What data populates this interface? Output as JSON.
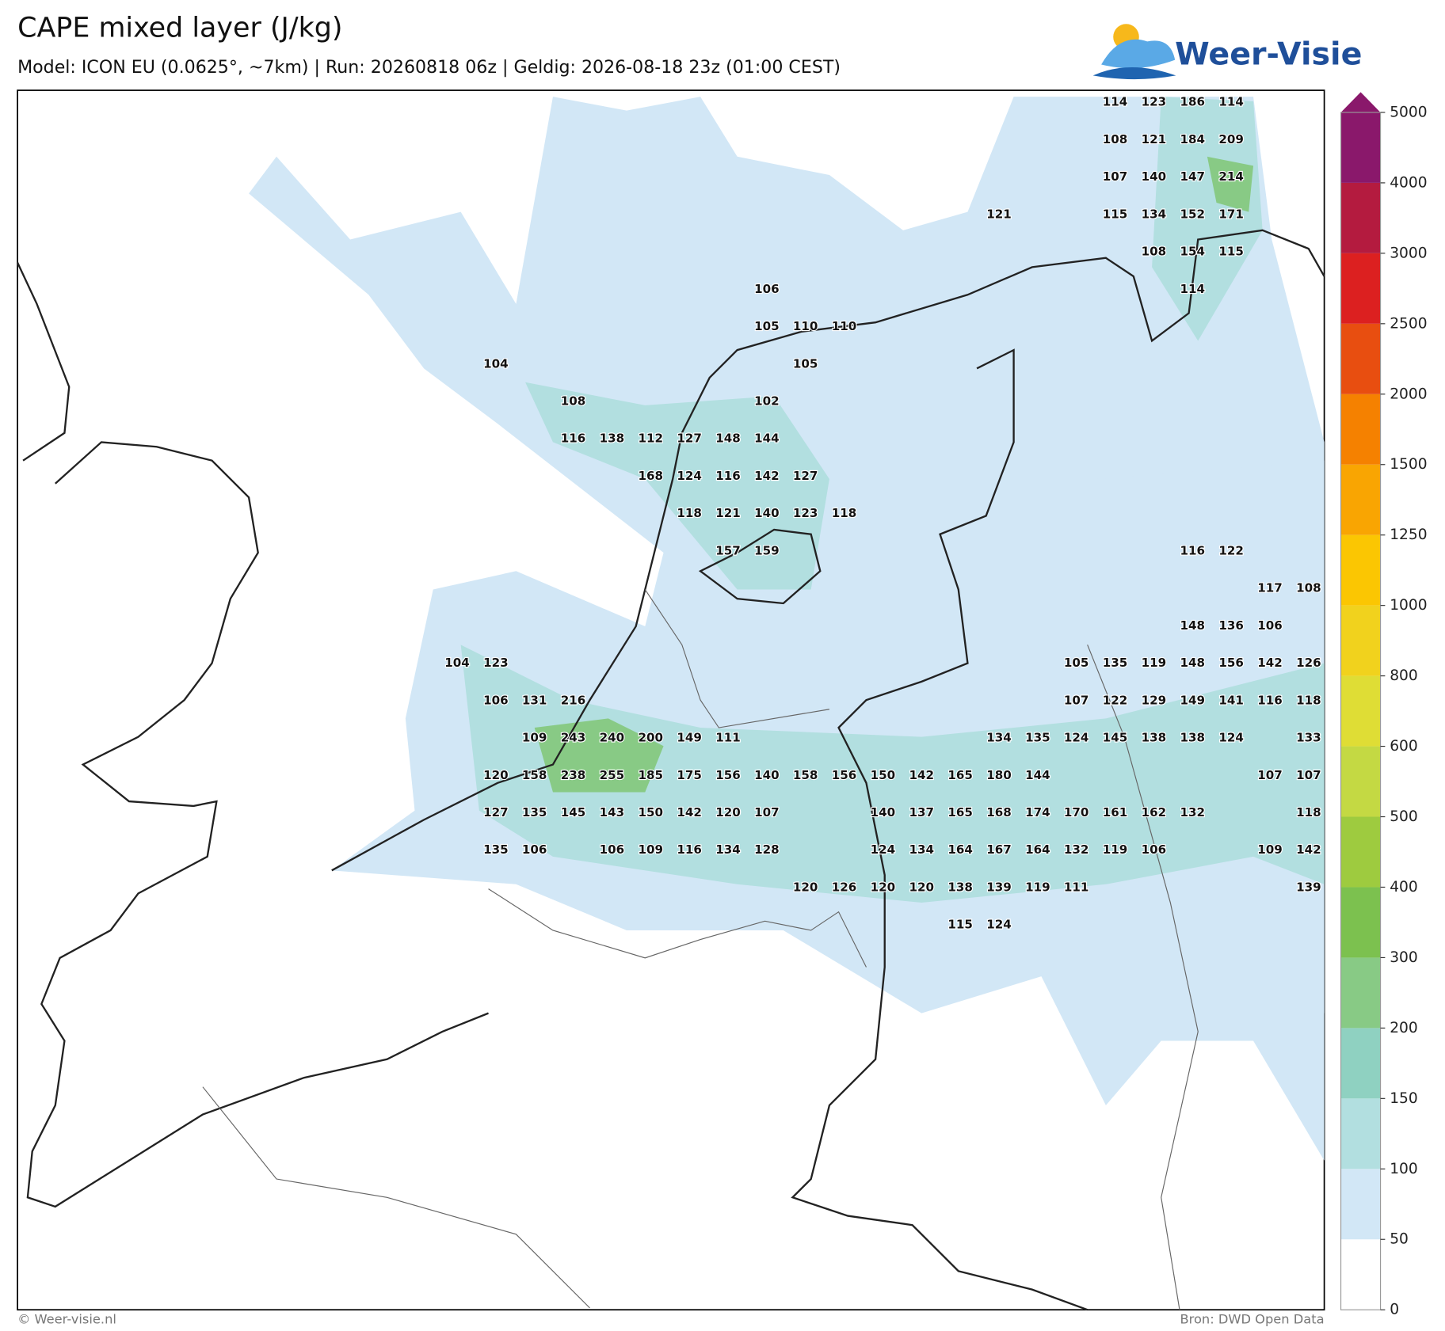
{
  "header": {
    "title": "CAPE mixed layer (J/kg)",
    "subtitle": "Model: ICON EU (0.0625°, ~7km)  |  Run: 20260818 06z  |  Geldig: 2026-08-18 23z (01:00 CEST)",
    "logo": "Weer-Visie"
  },
  "grid": {
    "rows": [
      [
        null,
        null,
        null,
        null,
        null,
        null,
        null,
        null,
        null,
        null,
        null,
        null,
        null,
        null,
        null,
        null,
        null,
        114,
        123,
        186,
        114,
        null,
        null
      ],
      [
        null,
        null,
        null,
        null,
        null,
        null,
        null,
        null,
        null,
        null,
        null,
        null,
        null,
        null,
        null,
        null,
        null,
        108,
        121,
        184,
        209,
        null,
        null
      ],
      [
        null,
        null,
        null,
        null,
        null,
        null,
        null,
        null,
        null,
        null,
        null,
        null,
        null,
        null,
        null,
        null,
        null,
        107,
        140,
        147,
        214,
        null,
        null
      ],
      [
        null,
        null,
        null,
        null,
        null,
        null,
        null,
        null,
        null,
        null,
        null,
        null,
        null,
        null,
        121,
        null,
        null,
        115,
        134,
        152,
        171,
        null,
        null
      ],
      [
        null,
        null,
        null,
        null,
        null,
        null,
        null,
        null,
        null,
        null,
        null,
        null,
        null,
        null,
        null,
        null,
        null,
        null,
        108,
        154,
        115,
        null,
        null
      ],
      [
        null,
        null,
        null,
        null,
        null,
        null,
        null,
        null,
        106,
        null,
        null,
        null,
        null,
        null,
        null,
        null,
        null,
        null,
        null,
        114,
        null,
        null,
        null
      ],
      [
        null,
        null,
        null,
        null,
        null,
        null,
        null,
        null,
        105,
        110,
        110,
        null,
        null,
        null,
        null,
        null,
        null,
        null,
        null,
        null,
        null,
        null,
        null
      ],
      [
        null,
        104,
        null,
        null,
        null,
        null,
        null,
        null,
        null,
        105,
        null,
        null,
        null,
        null,
        null,
        null,
        null,
        null,
        null,
        null,
        null,
        null,
        null
      ],
      [
        null,
        null,
        null,
        108,
        null,
        null,
        null,
        null,
        102,
        null,
        null,
        null,
        null,
        null,
        null,
        null,
        null,
        null,
        null,
        null,
        null,
        null,
        null
      ],
      [
        null,
        null,
        null,
        116,
        138,
        112,
        127,
        148,
        144,
        null,
        null,
        null,
        null,
        null,
        null,
        null,
        null,
        null,
        null,
        null,
        null,
        null,
        null
      ],
      [
        null,
        null,
        null,
        null,
        null,
        168,
        124,
        116,
        142,
        127,
        null,
        null,
        null,
        null,
        null,
        null,
        null,
        null,
        null,
        null,
        null,
        null,
        null
      ],
      [
        null,
        null,
        null,
        null,
        null,
        null,
        118,
        121,
        140,
        123,
        118,
        null,
        null,
        null,
        null,
        null,
        null,
        null,
        null,
        null,
        null,
        null,
        null
      ],
      [
        null,
        null,
        null,
        null,
        null,
        null,
        null,
        157,
        159,
        null,
        null,
        null,
        null,
        null,
        null,
        null,
        null,
        null,
        null,
        116,
        122,
        null,
        null
      ],
      [
        null,
        null,
        null,
        null,
        null,
        null,
        null,
        null,
        null,
        null,
        null,
        null,
        null,
        null,
        null,
        null,
        null,
        null,
        null,
        null,
        null,
        117,
        108
      ],
      [
        null,
        null,
        null,
        null,
        null,
        null,
        null,
        null,
        null,
        null,
        null,
        null,
        null,
        null,
        null,
        null,
        null,
        null,
        null,
        148,
        136,
        106,
        null
      ],
      [
        104,
        123,
        null,
        null,
        null,
        null,
        null,
        null,
        null,
        null,
        null,
        null,
        null,
        null,
        null,
        null,
        105,
        135,
        119,
        148,
        156,
        142,
        126
      ],
      [
        null,
        106,
        131,
        216,
        null,
        null,
        null,
        null,
        null,
        null,
        null,
        null,
        null,
        null,
        null,
        null,
        107,
        122,
        129,
        149,
        141,
        116,
        118
      ],
      [
        null,
        null,
        109,
        243,
        240,
        200,
        149,
        111,
        null,
        null,
        null,
        null,
        null,
        null,
        134,
        135,
        124,
        145,
        138,
        138,
        124,
        null,
        133
      ],
      [
        null,
        120,
        158,
        238,
        255,
        185,
        175,
        156,
        140,
        158,
        156,
        150,
        142,
        165,
        180,
        144,
        null,
        null,
        null,
        null,
        null,
        107,
        107
      ],
      [
        null,
        127,
        135,
        145,
        143,
        150,
        142,
        120,
        107,
        null,
        null,
        140,
        137,
        165,
        168,
        174,
        170,
        161,
        162,
        132,
        null,
        null,
        118
      ],
      [
        null,
        135,
        106,
        null,
        106,
        109,
        116,
        134,
        128,
        null,
        null,
        124,
        134,
        164,
        167,
        164,
        132,
        119,
        106,
        null,
        null,
        109,
        142
      ],
      [
        null,
        null,
        null,
        null,
        null,
        null,
        null,
        null,
        null,
        120,
        126,
        120,
        120,
        138,
        139,
        119,
        111,
        null,
        null,
        null,
        null,
        null,
        139
      ],
      [
        null,
        null,
        null,
        null,
        null,
        null,
        null,
        null,
        null,
        null,
        null,
        null,
        null,
        115,
        124,
        null,
        null,
        null,
        null,
        null,
        null,
        null,
        null
      ]
    ]
  },
  "colorbar": {
    "ticks": [
      0,
      50,
      100,
      150,
      200,
      300,
      400,
      500,
      600,
      800,
      1000,
      1250,
      1500,
      2000,
      2500,
      3000,
      4000,
      5000
    ],
    "colors": [
      "#ffffff",
      "#d2e7f6",
      "#b2dfe0",
      "#8fd1c1",
      "#88ca85",
      "#7cc14f",
      "#9ecb3f",
      "#c4d943",
      "#dfdd35",
      "#f1d21d",
      "#fbc602",
      "#f9a502",
      "#f58100",
      "#e84e10",
      "#dc2020",
      "#b41b3f",
      "#8a186b"
    ]
  },
  "footer": {
    "left": "© Weer-visie.nl",
    "right": "Bron: DWD Open Data"
  }
}
